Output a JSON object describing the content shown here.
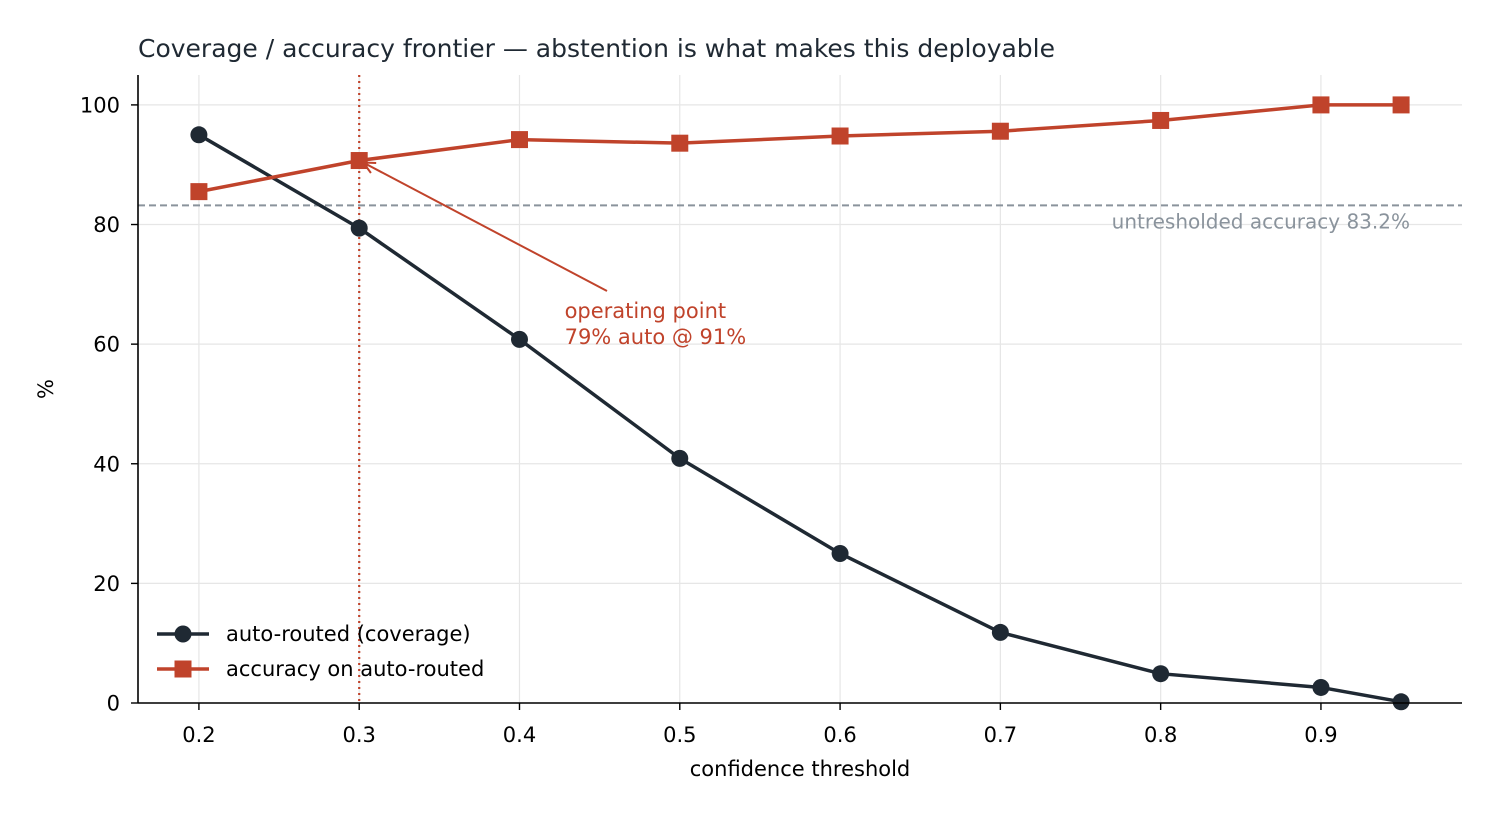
{
  "chart_data": {
    "type": "line",
    "title": "Coverage / accuracy frontier — abstention is what makes this deployable",
    "xlabel": "confidence threshold",
    "ylabel": "%",
    "xlim": [
      0.162,
      0.988
    ],
    "ylim": [
      0,
      105
    ],
    "x_ticks": [
      0.2,
      0.3,
      0.4,
      0.5,
      0.6,
      0.7,
      0.8,
      0.9
    ],
    "x_tick_labels": [
      "0.2",
      "0.3",
      "0.4",
      "0.5",
      "0.6",
      "0.7",
      "0.8",
      "0.9"
    ],
    "y_ticks": [
      0,
      20,
      40,
      60,
      80,
      100
    ],
    "y_tick_labels": [
      "0",
      "20",
      "40",
      "60",
      "80",
      "100"
    ],
    "grid": true,
    "legend_position": "bottom-left",
    "x": [
      0.2,
      0.3,
      0.4,
      0.5,
      0.6,
      0.7,
      0.8,
      0.9,
      0.95
    ],
    "series": [
      {
        "name": "auto-routed (coverage)",
        "color": "#1f2933",
        "marker": "circle",
        "values": [
          95.0,
          79.4,
          60.8,
          40.9,
          25.0,
          11.8,
          4.9,
          2.6,
          0.2
        ]
      },
      {
        "name": "accuracy on auto-routed",
        "color": "#c0432b",
        "marker": "square",
        "values": [
          85.5,
          90.7,
          94.2,
          93.6,
          94.8,
          95.6,
          97.4,
          100.0,
          100.0
        ]
      }
    ],
    "reference_line": {
      "y": 83.2,
      "label": "untresholded accuracy 83.2%",
      "color": "#8a939c",
      "style": "dashed"
    },
    "vertical_line": {
      "x": 0.3,
      "color": "#c0432b",
      "style": "dotted"
    },
    "annotation": {
      "lines": [
        "operating point",
        "79% auto @ 91%"
      ],
      "target_x": 0.3,
      "target_y": 90.7,
      "text_x": 0.43,
      "text_y": 65,
      "color": "#c0432b"
    }
  }
}
